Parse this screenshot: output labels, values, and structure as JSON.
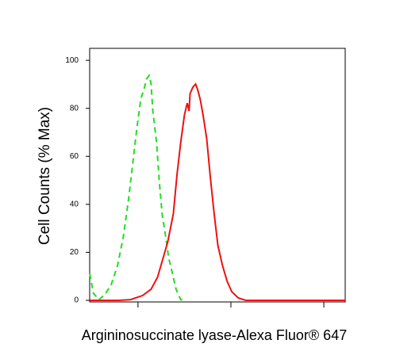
{
  "chart_data": {
    "type": "line",
    "ylabel": "Cell Counts (% Max)",
    "xlabel": "Argininosuccinate lyase-Alexa Fluor® 647",
    "log_x": true,
    "xlim": [
      0.48,
      3.23
    ],
    "xticks": [
      1,
      2,
      3
    ],
    "ylim": [
      0,
      105
    ],
    "yticks": [
      0,
      20,
      40,
      60,
      80,
      100
    ],
    "grid": false,
    "series": [
      {
        "color": "#22dd22",
        "dashed": true,
        "x": [
          0.48,
          0.52,
          0.58,
          0.64,
          0.71,
          0.78,
          0.84,
          0.9,
          0.95,
          0.99,
          1.03,
          1.07,
          1.09,
          1.12,
          1.14,
          1.16,
          1.2,
          1.23,
          1.26,
          1.3,
          1.33,
          1.38,
          1.41,
          1.46,
          1.52
        ],
        "values": [
          11.2,
          3.0,
          0.3,
          2.3,
          6.3,
          14.5,
          26.1,
          42.6,
          59.1,
          72.3,
          83.8,
          88.8,
          92.1,
          93.7,
          90.4,
          78.9,
          65.7,
          49.2,
          36.0,
          26.1,
          17.8,
          9.6,
          4.6,
          0.3,
          0
        ]
      },
      {
        "color": "#ee1111",
        "dashed": false,
        "x": [
          0.48,
          0.79,
          0.92,
          1.05,
          1.14,
          1.21,
          1.26,
          1.32,
          1.38,
          1.42,
          1.46,
          1.5,
          1.53,
          1.55,
          1.56,
          1.59,
          1.62,
          1.64,
          1.67,
          1.7,
          1.74,
          1.78,
          1.82,
          1.86,
          1.91,
          1.96,
          2.01,
          2.08,
          2.16,
          3.23
        ],
        "values": [
          0,
          0,
          0.3,
          2.0,
          4.6,
          9.6,
          16.2,
          24.4,
          36.0,
          52.5,
          65.7,
          77.2,
          82.2,
          78.9,
          86.1,
          88.8,
          90.1,
          88.1,
          83.8,
          77.2,
          67.3,
          50.8,
          36.0,
          22.8,
          14.5,
          7.9,
          3.6,
          1.0,
          0,
          0
        ]
      }
    ]
  }
}
